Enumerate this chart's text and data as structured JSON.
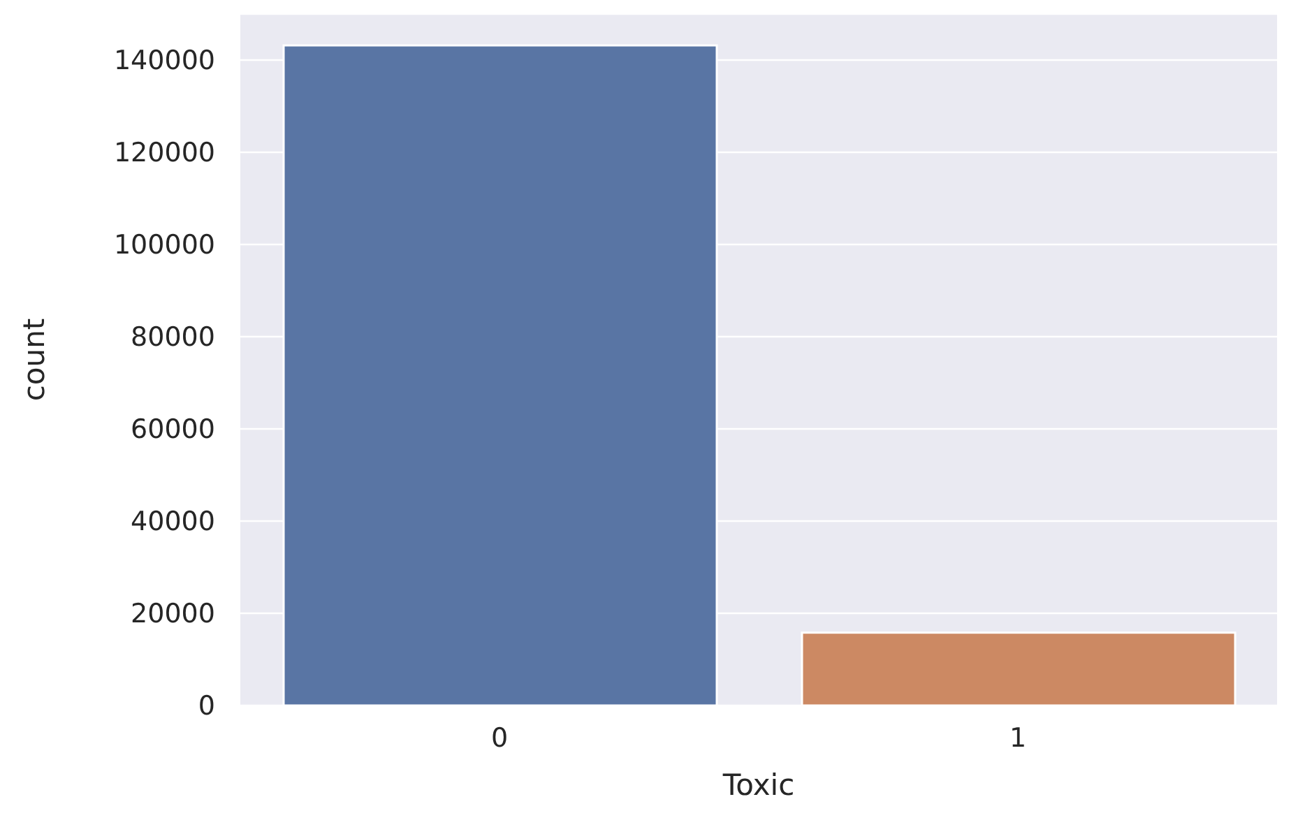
{
  "chart_data": {
    "type": "bar",
    "xlabel": "Toxic",
    "ylabel": "count",
    "categories": [
      "0",
      "1"
    ],
    "values": [
      143200,
      15800
    ],
    "colors": [
      "#5975a4",
      "#cc8963"
    ],
    "ylim": [
      0,
      150000
    ],
    "yticks": [
      0,
      20000,
      40000,
      60000,
      80000,
      100000,
      120000,
      140000
    ],
    "grid": "y"
  }
}
